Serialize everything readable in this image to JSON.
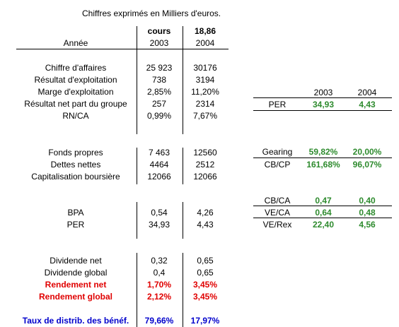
{
  "note": "Chiffres exprimés en Milliers d'euros.",
  "header": {
    "cours_label": "cours",
    "cours_value": "18,86"
  },
  "year_label": "Année",
  "years": [
    "2003",
    "2004"
  ],
  "sections": [
    {
      "rows": [
        {
          "label": "Chiffre d'affaires",
          "v2003": "25 923",
          "v2004": "30176"
        },
        {
          "label": "Résultat d'exploitation",
          "v2003": "738",
          "v2004": "3194"
        },
        {
          "label": "Marge d'exploitation",
          "v2003": "2,85%",
          "v2004": "11,20%"
        },
        {
          "label": "Résultat net part du groupe",
          "v2003": "257",
          "v2004": "2314"
        },
        {
          "label": "RN/CA",
          "v2003": "0,99%",
          "v2004": "7,67%"
        }
      ]
    },
    {
      "rows": [
        {
          "label": "Fonds propres",
          "v2003": "7 463",
          "v2004": "12560"
        },
        {
          "label": "Dettes nettes",
          "v2003": "4464",
          "v2004": "2512"
        },
        {
          "label": "Capitalisation boursière",
          "v2003": "12066",
          "v2004": "12066"
        }
      ]
    },
    {
      "rows": [
        {
          "label": "BPA",
          "v2003": "0,54",
          "v2004": "4,26"
        },
        {
          "label": "PER",
          "v2003": "34,93",
          "v2004": "4,43"
        }
      ]
    },
    {
      "rows": [
        {
          "label": "Dividende net",
          "v2003": "0,32",
          "v2004": "0,65"
        },
        {
          "label": "Dividende global",
          "v2003": "0,4",
          "v2004": "0,65"
        },
        {
          "label": "Rendement net",
          "v2003": "1,70%",
          "v2004": "3,45%"
        },
        {
          "label": "Rendement global",
          "v2003": "2,12%",
          "v2004": "3,45%"
        }
      ]
    }
  ],
  "taux": {
    "label": "Taux de distrib. des bénéf.",
    "v2003": "79,66%",
    "v2004": "17,97%"
  },
  "side": {
    "years": [
      "2003",
      "2004"
    ],
    "per": {
      "label": "PER",
      "v2003": "34,93",
      "v2004": "4,43"
    },
    "ratios1": [
      {
        "label": "Gearing",
        "v2003": "59,82%",
        "v2004": "20,00%"
      },
      {
        "label": "CB/CP",
        "v2003": "161,68%",
        "v2004": "96,07%"
      }
    ],
    "ratios2": [
      {
        "label": "CB/CA",
        "v2003": "0,47",
        "v2004": "0,40"
      },
      {
        "label": "VE/CA",
        "v2003": "0,64",
        "v2004": "0,48"
      },
      {
        "label": "VE/Rex",
        "v2003": "22,40",
        "v2004": "4,56"
      }
    ]
  },
  "colors": {
    "green": "#2e8b2e",
    "red": "#e00000",
    "blue": "#0000cc"
  }
}
